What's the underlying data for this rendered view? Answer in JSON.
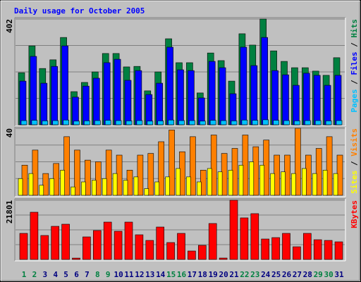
{
  "title": "Daily usage for October 2005",
  "chart_data": [
    {
      "type": "bar",
      "ylim": [
        0,
        402
      ],
      "yticks": [
        402
      ],
      "legend_separator": " / ",
      "series": [
        {
          "name": "Pages",
          "color": "#00C0FF",
          "values": [
            16,
            17,
            15,
            16,
            18,
            14,
            15,
            16,
            17,
            16,
            15,
            16,
            14,
            15,
            18,
            16,
            16,
            14,
            17,
            16,
            15,
            18,
            17,
            19,
            17,
            16,
            15,
            16,
            16,
            15,
            16
          ]
        },
        {
          "name": "Files",
          "color": "#0000FF",
          "values": [
            166,
            260,
            158,
            222,
            300,
            105,
            147,
            177,
            236,
            249,
            169,
            206,
            115,
            158,
            295,
            209,
            206,
            102,
            241,
            217,
            118,
            295,
            225,
            332,
            206,
            190,
            150,
            196,
            188,
            150,
            188
          ]
        },
        {
          "name": "Hits",
          "color": "#008040",
          "values": [
            198,
            300,
            214,
            247,
            332,
            126,
            161,
            201,
            271,
            271,
            220,
            222,
            129,
            201,
            327,
            236,
            236,
            121,
            273,
            244,
            166,
            346,
            303,
            402,
            281,
            241,
            217,
            217,
            204,
            188,
            255
          ]
        }
      ]
    },
    {
      "type": "bar",
      "ylim": [
        0,
        40
      ],
      "yticks": [
        40
      ],
      "legend_separator": " / ",
      "series": [
        {
          "name": "Sites",
          "color": "#FFFF00",
          "values": [
            10,
            13,
            6,
            10,
            15,
            5,
            8,
            9,
            10,
            13,
            9,
            11,
            4,
            8,
            11,
            16,
            11,
            8,
            16,
            14,
            15,
            18,
            20,
            18,
            13,
            14,
            13,
            16,
            13,
            15,
            13
          ]
        },
        {
          "name": "Visits",
          "color": "#FF8000",
          "values": [
            18,
            27,
            13,
            19,
            35,
            27,
            21,
            20,
            27,
            24,
            15,
            24,
            25,
            32,
            39,
            26,
            35,
            15,
            36,
            25,
            28,
            36,
            29,
            33,
            24,
            24,
            40,
            24,
            28,
            35,
            24
          ]
        }
      ]
    },
    {
      "type": "bar",
      "ylim": [
        0,
        21801
      ],
      "yticks": [
        21801
      ],
      "series": [
        {
          "name": "KBytes",
          "color": "#FF0000",
          "values": [
            9603,
            17389,
            8824,
            12198,
            12977,
            500,
            8305,
            10641,
            13755,
            10382,
            13755,
            9084,
            7007,
            11939,
            6229,
            9603,
            3114,
            5191,
            13236,
            519,
            21801,
            15313,
            16870,
            7526,
            8046,
            9603,
            4672,
            9603,
            7267,
            7007,
            6488
          ]
        }
      ],
      "categories": [
        "1",
        "2",
        "3",
        "4",
        "5",
        "6",
        "7",
        "8",
        "9",
        "10",
        "11",
        "12",
        "13",
        "14",
        "15",
        "16",
        "17",
        "18",
        "19",
        "20",
        "21",
        "22",
        "23",
        "24",
        "25",
        "26",
        "27",
        "28",
        "29",
        "30",
        "31"
      ],
      "category_colors": [
        "#008040",
        "#008040",
        "#000080",
        "#000080",
        "#000080",
        "#000080",
        "#000080",
        "#008040",
        "#008040",
        "#000080",
        "#000080",
        "#000080",
        "#000080",
        "#000080",
        "#008040",
        "#008040",
        "#000080",
        "#000080",
        "#000080",
        "#000080",
        "#000080",
        "#008040",
        "#008040",
        "#000080",
        "#000080",
        "#000080",
        "#000080",
        "#000080",
        "#008040",
        "#008040",
        "#000080"
      ]
    }
  ]
}
